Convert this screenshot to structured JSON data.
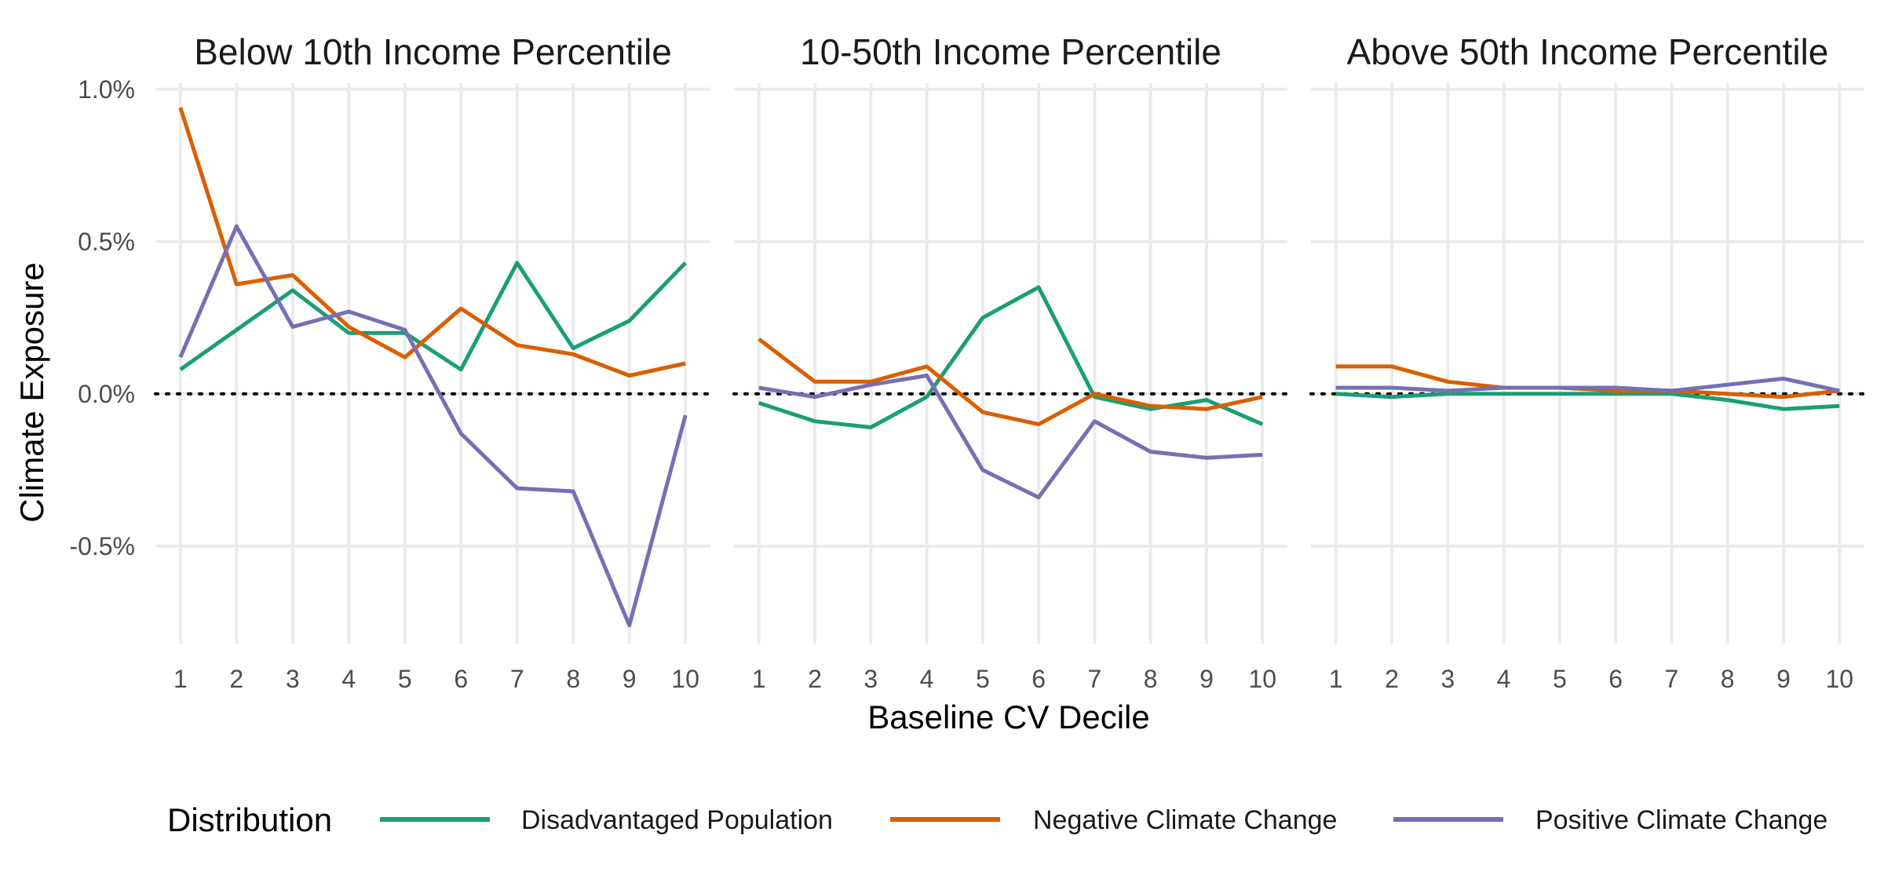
{
  "chart_data": {
    "type": "line",
    "facets": [
      {
        "title": "Below 10th Income Percentile",
        "series": [
          {
            "name": "Disadvantaged Population",
            "values": [
              0.08,
              0.21,
              0.34,
              0.2,
              0.2,
              0.08,
              0.43,
              0.15,
              0.24,
              0.43
            ]
          },
          {
            "name": "Negative Climate Change",
            "values": [
              0.94,
              0.36,
              0.39,
              0.22,
              0.12,
              0.28,
              0.16,
              0.13,
              0.06,
              0.1
            ]
          },
          {
            "name": "Positive Climate Change",
            "values": [
              0.12,
              0.55,
              0.22,
              0.27,
              0.21,
              -0.13,
              -0.31,
              -0.32,
              -0.76,
              -0.07
            ]
          }
        ]
      },
      {
        "title": "10-50th Income Percentile",
        "series": [
          {
            "name": "Disadvantaged Population",
            "values": [
              -0.03,
              -0.09,
              -0.11,
              -0.01,
              0.25,
              0.35,
              -0.01,
              -0.05,
              -0.02,
              -0.1
            ]
          },
          {
            "name": "Negative Climate Change",
            "values": [
              0.18,
              0.04,
              0.04,
              0.09,
              -0.06,
              -0.1,
              0.0,
              -0.04,
              -0.05,
              -0.01
            ]
          },
          {
            "name": "Positive Climate Change",
            "values": [
              0.02,
              -0.01,
              0.03,
              0.06,
              -0.25,
              -0.34,
              -0.09,
              -0.19,
              -0.21,
              -0.2
            ]
          }
        ]
      },
      {
        "title": "Above 50th Income Percentile",
        "series": [
          {
            "name": "Disadvantaged Population",
            "values": [
              0.0,
              -0.01,
              0.0,
              0.0,
              0.0,
              0.0,
              0.0,
              -0.02,
              -0.05,
              -0.04
            ]
          },
          {
            "name": "Negative Climate Change",
            "values": [
              0.09,
              0.09,
              0.04,
              0.02,
              0.02,
              0.01,
              0.01,
              0.0,
              -0.01,
              0.01
            ]
          },
          {
            "name": "Positive Climate Change",
            "values": [
              0.02,
              0.02,
              0.01,
              0.02,
              0.02,
              0.02,
              0.01,
              0.03,
              0.05,
              0.01
            ]
          }
        ]
      }
    ],
    "x": [
      1,
      2,
      3,
      4,
      5,
      6,
      7,
      8,
      9,
      10
    ],
    "x_tick_labels": [
      "1",
      "2",
      "3",
      "4",
      "5",
      "6",
      "7",
      "8",
      "9",
      "10"
    ],
    "y_ticks": [
      1.0,
      0.5,
      0.0,
      -0.5
    ],
    "y_tick_labels": [
      "1.0%",
      "0.5%",
      "0.0%",
      "-0.5%"
    ],
    "xlabel": "Baseline CV Decile",
    "ylabel": "Climate Exposure",
    "ylim": [
      -0.82,
      1.02
    ],
    "reference_line": {
      "y": 0,
      "style": "dotted"
    },
    "grid": true,
    "legend": {
      "title": "Distribution",
      "position": "bottom",
      "entries": [
        {
          "name": "Disadvantaged Population",
          "color": "#1b9e77"
        },
        {
          "name": "Negative Climate Change",
          "color": "#d95f02"
        },
        {
          "name": "Positive Climate Change",
          "color": "#7570b3"
        }
      ]
    }
  }
}
